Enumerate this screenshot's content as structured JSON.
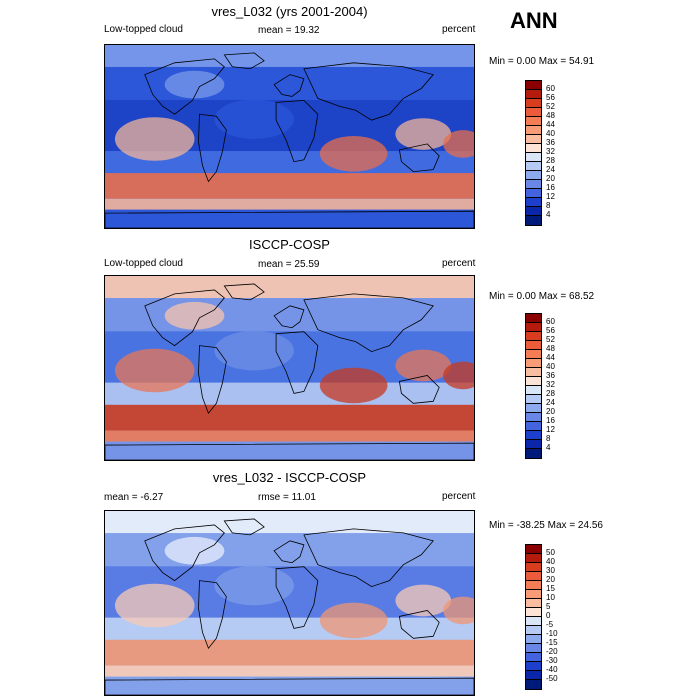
{
  "season": "ANN",
  "panels": [
    {
      "title": "vres_L032 (yrs 2001-2004)",
      "left": "Low-topped cloud",
      "center": "mean =  19.32",
      "right": "percent",
      "minmax": "Min =   0.00 Max =  54.91",
      "ticks": [
        "60",
        "56",
        "52",
        "48",
        "44",
        "40",
        "36",
        "32",
        "28",
        "24",
        "20",
        "16",
        "12",
        "8",
        "4"
      ],
      "colors": [
        "#8a0000",
        "#b51b0d",
        "#d83d1f",
        "#ec5c3a",
        "#f47d56",
        "#f89c78",
        "#f9bea2",
        "#fbe3d6",
        "#d8e6f8",
        "#b5cbf3",
        "#8eaaee",
        "#6a86e6",
        "#4364de",
        "#1e3fcc",
        "#0b26a8",
        "#001a7a"
      ],
      "tone": "cool"
    },
    {
      "title": "ISCCP-COSP",
      "left": "Low-topped cloud",
      "center": "mean =  25.59",
      "right": "percent",
      "minmax": "Min =   0.00 Max =  68.52",
      "ticks": [
        "60",
        "56",
        "52",
        "48",
        "44",
        "40",
        "36",
        "32",
        "28",
        "24",
        "20",
        "16",
        "12",
        "8",
        "4"
      ],
      "colors": [
        "#8a0000",
        "#b51b0d",
        "#d83d1f",
        "#ec5c3a",
        "#f47d56",
        "#f89c78",
        "#f9bea2",
        "#fbe3d6",
        "#d8e6f8",
        "#b5cbf3",
        "#8eaaee",
        "#6a86e6",
        "#4364de",
        "#1e3fcc",
        "#0b26a8",
        "#001a7a"
      ],
      "tone": "mixed"
    },
    {
      "title": "vres_L032 - ISCCP-COSP",
      "left": "mean =  -6.27",
      "center": "rmse =  11.01",
      "right": "percent",
      "minmax": "Min = -38.25 Max =  24.56",
      "ticks": [
        "50",
        "40",
        "30",
        "20",
        "15",
        "10",
        "5",
        "0",
        "-5",
        "-10",
        "-15",
        "-20",
        "-30",
        "-40",
        "-50"
      ],
      "colors": [
        "#8a0000",
        "#b51b0d",
        "#d83d1f",
        "#ec5c3a",
        "#f47d56",
        "#f89c78",
        "#f9bea2",
        "#fbe3d6",
        "#d8e6f8",
        "#b5cbf3",
        "#8eaaee",
        "#6a86e6",
        "#4364de",
        "#1e3fcc",
        "#0b26a8",
        "#001a7a"
      ],
      "tone": "diff"
    }
  ]
}
